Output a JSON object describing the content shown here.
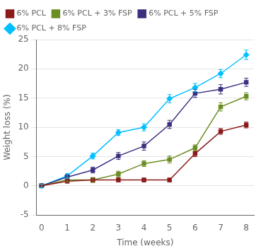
{
  "chart_data": {
    "type": "line",
    "title": "",
    "xlabel": "Time (weeks)",
    "ylabel": "Weight loss (%)",
    "xlim": [
      -0.2,
      8.3
    ],
    "ylim": [
      -5,
      25
    ],
    "xticks": [
      0,
      1,
      2,
      3,
      4,
      5,
      6,
      7,
      8
    ],
    "yticks": [
      -5,
      0,
      5,
      10,
      15,
      20,
      25
    ],
    "grid": "y",
    "legend": "upper left",
    "series": [
      {
        "name": "6% PCL",
        "color": "#8B1A1A",
        "marker": "square",
        "x": [
          0,
          1,
          2,
          3,
          4,
          5,
          6,
          7,
          8
        ],
        "values": [
          0,
          0.8,
          1.0,
          1.0,
          1.0,
          1.0,
          5.5,
          9.3,
          10.4
        ],
        "yerr": [
          0.3,
          0.3,
          0.4,
          0.3,
          0.3,
          0.3,
          0.5,
          0.5,
          0.5
        ]
      },
      {
        "name": "6% PCL + 3% FSP",
        "color": "#6B8E23",
        "marker": "square",
        "x": [
          0,
          1,
          2,
          3,
          4,
          5,
          6,
          7,
          8
        ],
        "values": [
          0,
          1.0,
          1.0,
          2.0,
          3.8,
          4.5,
          6.5,
          13.5,
          15.3
        ],
        "yerr": [
          0.3,
          0.3,
          0.4,
          0.5,
          0.5,
          0.6,
          0.5,
          0.7,
          0.6
        ]
      },
      {
        "name": "6% PCL + 5% FSP",
        "color": "#3B3080",
        "marker": "square",
        "x": [
          0,
          1,
          2,
          3,
          4,
          5,
          6,
          7,
          8
        ],
        "values": [
          0,
          1.5,
          2.7,
          5.1,
          6.8,
          10.5,
          15.8,
          16.5,
          17.7
        ],
        "yerr": [
          0.3,
          0.4,
          0.5,
          0.6,
          0.7,
          0.7,
          0.7,
          0.8,
          0.7
        ]
      },
      {
        "name": "6% PCL + 8% FSP",
        "color": "#00BFFF",
        "marker": "diamond",
        "x": [
          0,
          1,
          2,
          3,
          4,
          5,
          6,
          7,
          8
        ],
        "values": [
          0,
          1.7,
          5.1,
          9.1,
          10.0,
          14.9,
          16.8,
          19.2,
          22.4
        ],
        "yerr": [
          0.3,
          0.4,
          0.5,
          0.5,
          0.6,
          0.7,
          0.7,
          0.7,
          0.8
        ]
      }
    ]
  }
}
